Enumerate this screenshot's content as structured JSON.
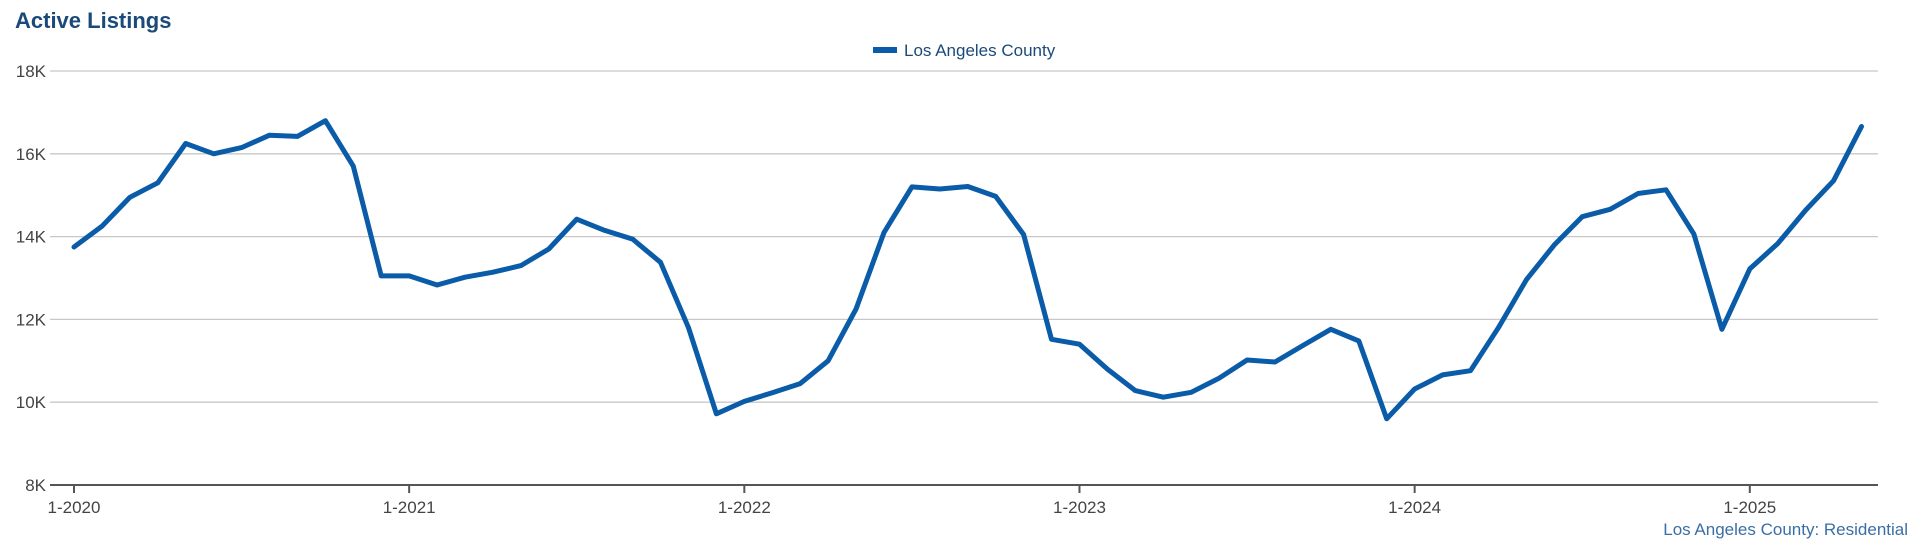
{
  "title": "Active Listings",
  "footer": "Los Angeles County: Residential",
  "colors": {
    "series": "#0a5ca8",
    "title": "#1b4a7a",
    "grid": "#c8c8c8",
    "axis": "#555555"
  },
  "chart_data": {
    "type": "line",
    "title": "Active Listings",
    "xlabel": "",
    "ylabel": "",
    "ylim": [
      8000,
      18000
    ],
    "yticks": [
      8000,
      10000,
      12000,
      14000,
      16000,
      18000
    ],
    "ytick_labels": [
      "8K",
      "10K",
      "12K",
      "14K",
      "16K",
      "18K"
    ],
    "xtick_labels": [
      "1-2020",
      "1-2021",
      "1-2022",
      "1-2023",
      "1-2024",
      "1-2025"
    ],
    "grid": true,
    "legend": "top-center",
    "x_start": "1-2020",
    "series": [
      {
        "name": "Los Angeles County",
        "values": [
          13750,
          14250,
          14950,
          15300,
          16250,
          16000,
          16150,
          16450,
          16420,
          16800,
          15700,
          13050,
          13050,
          12830,
          13020,
          13140,
          13300,
          13700,
          14420,
          14150,
          13940,
          13380,
          11800,
          9720,
          10020,
          10230,
          10450,
          11000,
          12250,
          14100,
          15200,
          15150,
          15210,
          14970,
          14050,
          11520,
          11400,
          10800,
          10280,
          10120,
          10240,
          10580,
          11020,
          10970,
          11370,
          11760,
          11480,
          9600,
          10320,
          10660,
          10760,
          11800,
          12960,
          13800,
          14480,
          14660,
          15040,
          15130,
          14060,
          11760,
          13220,
          13830,
          14640,
          15350,
          16660
        ]
      }
    ]
  }
}
